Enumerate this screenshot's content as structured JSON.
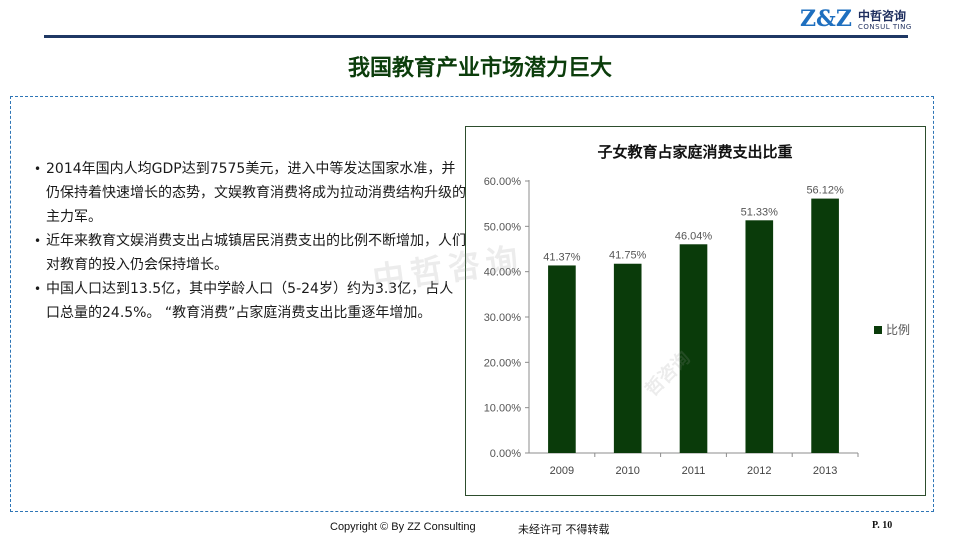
{
  "header": {
    "logo_zz": "Z&Z",
    "logo_cn": "中哲咨询",
    "logo_en": "CONSUL TING"
  },
  "title": "我国教育产业市场潜力巨大",
  "bullets": [
    "2014年国内人均GDP达到7575美元，进入中等发达国家水准，并仍保持着快速增长的态势，文娱教育消费将成为拉动消费结构升级的主力军。",
    "近年来教育文娱消费支出占城镇居民消费支出的比例不断增加，人们对教育的投入仍会保持增长。",
    "中国人口达到13.5亿，其中学龄人口（5-24岁）约为3.3亿，占人口总量的24.5%。 “教育消费”占家庭消费支出比重逐年增加。"
  ],
  "watermarks": [
    "中哲咨询",
    "哲咨询"
  ],
  "chart_data": {
    "type": "bar",
    "title": "子女教育占家庭消费支出比重",
    "categories": [
      "2009",
      "2010",
      "2011",
      "2012",
      "2013"
    ],
    "series": [
      {
        "name": "比例",
        "values": [
          41.37,
          41.75,
          46.04,
          51.33,
          56.12
        ]
      }
    ],
    "data_labels": [
      "41.37%",
      "41.75%",
      "46.04%",
      "51.33%",
      "56.12%"
    ],
    "y_ticks": [
      "0.00%",
      "10.00%",
      "20.00%",
      "30.00%",
      "40.00%",
      "50.00%",
      "60.00%"
    ],
    "ylim": [
      0,
      60
    ],
    "grid": false,
    "legend": "right",
    "bar_color": "#0a3b0a"
  },
  "footer": {
    "copyright": "Copyright © By  ZZ Consulting",
    "note": "未经许可 不得转载",
    "page": "P. 10"
  }
}
